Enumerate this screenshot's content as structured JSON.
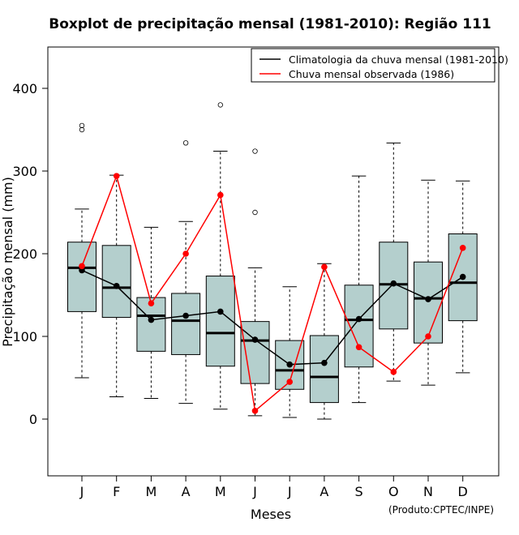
{
  "chart_data": {
    "type": "boxplot",
    "title": "Boxplot de precipitação mensal (1981-2010): Região 111",
    "xlabel": "Meses",
    "ylabel": "Precipitação mensal (mm)",
    "ylim": [
      -68,
      450
    ],
    "yticks": [
      0,
      100,
      200,
      300,
      400
    ],
    "categories": [
      "J",
      "F",
      "M",
      "A",
      "M",
      "J",
      "J",
      "A",
      "S",
      "O",
      "N",
      "D"
    ],
    "boxes": [
      {
        "whisker_low": 50,
        "q1": 130,
        "median": 183,
        "q3": 214,
        "whisker_high": 254,
        "outliers": [
          350,
          355
        ]
      },
      {
        "whisker_low": 27,
        "q1": 123,
        "median": 159,
        "q3": 210,
        "whisker_high": 295,
        "outliers": []
      },
      {
        "whisker_low": 25,
        "q1": 82,
        "median": 125,
        "q3": 147,
        "whisker_high": 232,
        "outliers": []
      },
      {
        "whisker_low": 19,
        "q1": 78,
        "median": 119,
        "q3": 152,
        "whisker_high": 239,
        "outliers": [
          334
        ]
      },
      {
        "whisker_low": 12,
        "q1": 64,
        "median": 104,
        "q3": 173,
        "whisker_high": 324,
        "outliers": [
          380
        ]
      },
      {
        "whisker_low": 4,
        "q1": 43,
        "median": 95,
        "q3": 118,
        "whisker_high": 183,
        "outliers": [
          250,
          324
        ]
      },
      {
        "whisker_low": 2,
        "q1": 36,
        "median": 59,
        "q3": 95,
        "whisker_high": 160,
        "outliers": []
      },
      {
        "whisker_low": 0,
        "q1": 20,
        "median": 51,
        "q3": 101,
        "whisker_high": 188,
        "outliers": []
      },
      {
        "whisker_low": 20,
        "q1": 63,
        "median": 120,
        "q3": 162,
        "whisker_high": 294,
        "outliers": []
      },
      {
        "whisker_low": 46,
        "q1": 109,
        "median": 163,
        "q3": 214,
        "whisker_high": 334,
        "outliers": []
      },
      {
        "whisker_low": 41,
        "q1": 92,
        "median": 146,
        "q3": 190,
        "whisker_high": 289,
        "outliers": []
      },
      {
        "whisker_low": 56,
        "q1": 119,
        "median": 165,
        "q3": 224,
        "whisker_high": 288,
        "outliers": []
      }
    ],
    "series": [
      {
        "name": "Climatologia da chuva mensal (1981-2010)",
        "color": "#000000",
        "values": [
          180,
          161,
          120,
          125,
          130,
          96,
          66,
          68,
          121,
          164,
          145,
          172
        ]
      },
      {
        "name": "Chuva mensal observada (1986)",
        "color": "#ff0000",
        "values": [
          185,
          294,
          140,
          200,
          271,
          10,
          45,
          184,
          87,
          57,
          100,
          207
        ]
      }
    ],
    "box_color": "#b4cfcd",
    "legend_position": "top-right",
    "credit": "(Produto:CPTEC/INPE)"
  }
}
